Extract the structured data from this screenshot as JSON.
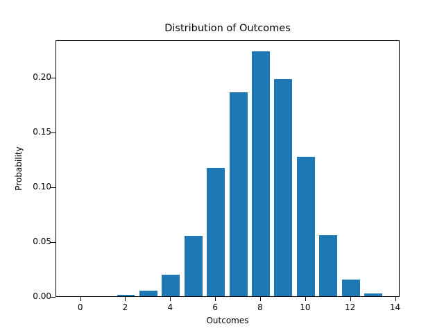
{
  "chart_data": {
    "type": "bar",
    "title": "Distribution of Outcomes",
    "xlabel": "Outcomes",
    "ylabel": "Probability",
    "categories": [
      0,
      1,
      2,
      3,
      4,
      5,
      6,
      7,
      8,
      9,
      10,
      11,
      12,
      13
    ],
    "values": [
      0.0,
      0.0,
      0.001,
      0.005,
      0.0195,
      0.055,
      0.117,
      0.186,
      0.223,
      0.198,
      0.127,
      0.0555,
      0.015,
      0.0025
    ],
    "xlim": [
      -1.1,
      14.2
    ],
    "ylim": [
      0,
      0.234
    ],
    "xticks": [
      "0",
      "2",
      "4",
      "6",
      "8",
      "10",
      "12",
      "14"
    ],
    "yticks": [
      "0.00",
      "0.05",
      "0.10",
      "0.15",
      "0.20"
    ],
    "color": "#1f77b4",
    "grid": false,
    "legend": null
  }
}
